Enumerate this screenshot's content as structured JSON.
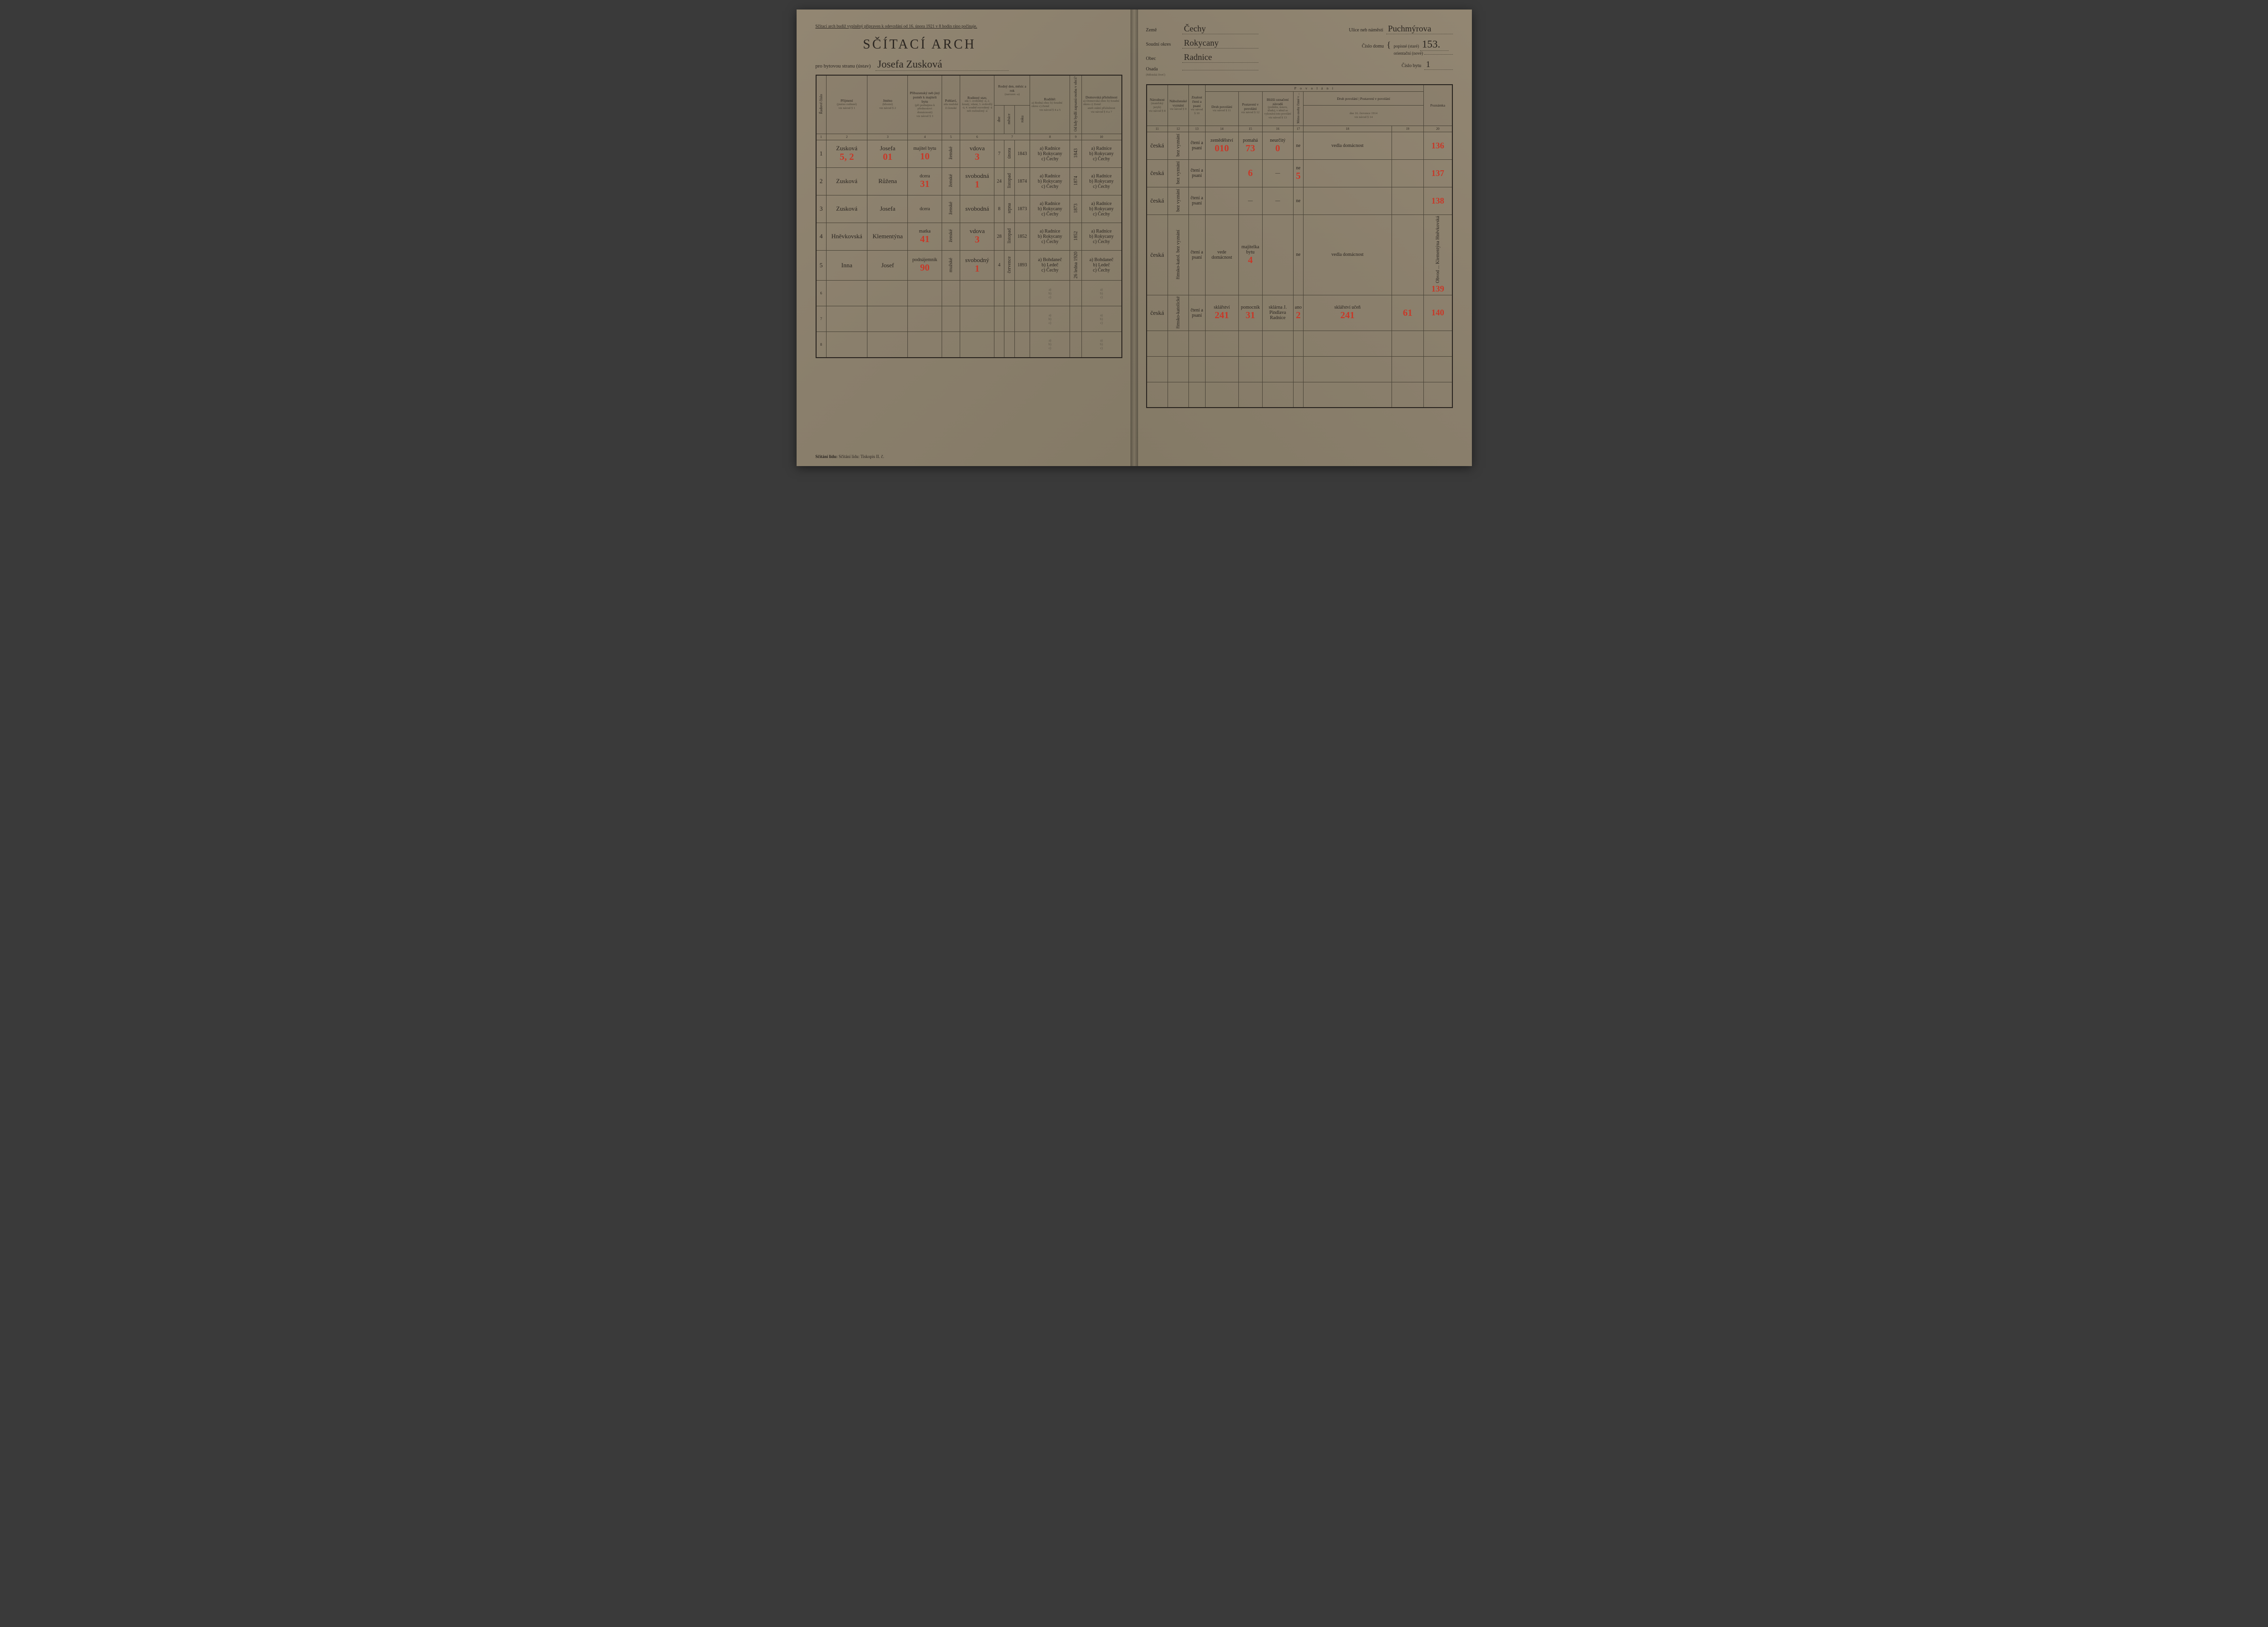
{
  "document": {
    "type": "census_form",
    "country": "Czechoslovakia",
    "year": 1921,
    "language": "Czech"
  },
  "left_page": {
    "top_instruction": "Sčítací arch budiž vyplněný připraven k odevzdání od 16. února 1921 v 8 hodin ráno počínaje.",
    "main_title": "SČÍTACÍ ARCH",
    "subtitle_prefix": "pro bytovou stranu (ústav)",
    "household_head": "Josefa Zusková",
    "columns": {
      "c1": "Řadové číslo",
      "c2": {
        "title": "Příjmení",
        "sub": "(jméno rodinné)",
        "note": "viz návod § 1"
      },
      "c3": {
        "title": "Jméno",
        "sub": "(křestní)",
        "note": "viz návod § 2"
      },
      "c4": {
        "title": "Příbuzenský neb jiný poměr k majiteli bytu",
        "sub": "(při podnájmu k přednostovi domácnosti)",
        "note": "viz návod § 3"
      },
      "c5": {
        "title": "Pohlaví,",
        "sub": "zda mužské či ženské"
      },
      "c6": {
        "title": "Rodinný stav,",
        "sub": "zda 1. svobodný -á, 2. ženatý, vdaná, 3. ovdovělý -á, 4. soudně rozvedený -á neb rozloučený -á"
      },
      "c7": {
        "title": "Rodný den, měsíc a rok",
        "sub": "(narozen -a)",
        "subcols": [
          "dne",
          "měsíce",
          "roku"
        ],
        "note": "viz návod § 4"
      },
      "c8": {
        "title": "Rodiště:",
        "sub": "a) Rodná obec b) Soudní okres c) Země",
        "note": "viz návod § 4 a 5"
      },
      "c9": {
        "title": "Od kdy bydlí zapsaná osoba v obci?",
        "note": "viz návod § 4 a 6"
      },
      "c10": {
        "title": "Domovská příslušnost",
        "sub": "a) Domovská obec b) Soudní okres c) Země",
        "sub2": "aneb státní příslušnost",
        "note": "viz návod § 4 a 7"
      }
    },
    "col_numbers": [
      "1",
      "2",
      "3",
      "4",
      "5",
      "6",
      "7",
      "8",
      "9",
      "10"
    ],
    "rows": [
      {
        "num": "1",
        "surname": "Zusková",
        "red_surname": "5, 2",
        "given": "Josefa",
        "red_given": "01",
        "relation": "majitel bytu",
        "red_relation": "10",
        "sex": "ženské",
        "status": "vdova",
        "red_status": "3",
        "birth_day": "7",
        "birth_month": "února",
        "birth_year": "1843",
        "birthplace": {
          "a": "Radnice",
          "b": "Rokycany",
          "c": "Čechy"
        },
        "since": "1843",
        "domicile": {
          "a": "Radnice",
          "b": "Rokycany",
          "c": "Čechy"
        }
      },
      {
        "num": "2",
        "surname": "Zusková",
        "given": "Růžena",
        "relation": "dcera",
        "red_relation": "31",
        "sex": "ženské",
        "status": "svobodná",
        "red_status": "1",
        "birth_day": "24",
        "birth_month": "listopad",
        "birth_year": "1874",
        "birthplace": {
          "a": "Radnice",
          "b": "Rokycany",
          "c": "Čechy"
        },
        "since": "1874",
        "domicile": {
          "a": "Radnice",
          "b": "Rokycany",
          "c": "Čechy"
        }
      },
      {
        "num": "3",
        "surname": "Zusková",
        "given": "Josefa",
        "relation": "dcera",
        "sex": "ženské",
        "status": "svobodná",
        "birth_day": "8",
        "birth_month": "srpna",
        "birth_year": "1873",
        "birthplace": {
          "a": "Radnice",
          "b": "Rokycany",
          "c": "Čechy"
        },
        "since": "1873",
        "domicile": {
          "a": "Radnice",
          "b": "Rokycany",
          "c": "Čechy"
        }
      },
      {
        "num": "4",
        "surname": "Hněvkovská",
        "given": "Klementýna",
        "relation": "matka",
        "red_relation": "41",
        "sex": "ženské",
        "status": "vdova",
        "red_status": "3",
        "birth_day": "28",
        "birth_month": "listopad",
        "birth_year": "1852",
        "birthplace": {
          "a": "Radnice",
          "b": "Rokycany",
          "c": "Čechy"
        },
        "since": "1852",
        "domicile": {
          "a": "Radnice",
          "b": "Rokycany",
          "c": "Čechy"
        }
      },
      {
        "num": "5",
        "surname": "Inna",
        "given": "Josef",
        "relation": "podnájemník",
        "red_relation": "90",
        "sex": "mužské",
        "status": "svobodný",
        "red_status": "1",
        "birth_day": "4",
        "birth_month": "července",
        "birth_year": "1893",
        "birthplace": {
          "a": "Bohdaneč",
          "b": "Ledeč",
          "c": "Čechy"
        },
        "since": "26 ledna 1920",
        "domicile": {
          "a": "Bohdaneč",
          "b": "Ledeč",
          "c": "Čechy"
        }
      }
    ],
    "footer": "Sčítání lidu: Tiskopis II. č."
  },
  "right_page": {
    "header_left": {
      "zeme_label": "Země",
      "zeme": "Čechy",
      "okres_label": "Soudní okres",
      "okres": "Rokycany",
      "obec_label": "Obec",
      "obec": "Radnice",
      "osada_label": "Osada",
      "osada_sub": "(Městská čtvrť)",
      "osada": ""
    },
    "header_right": {
      "ulice_label": "Ulice neb náměstí",
      "ulice": "Puchmýrova",
      "cislo_domu_label": "Číslo domu",
      "popisne_label": "popisné (staré)",
      "popisne": "153.",
      "orientacni_label": "orientační (nové)",
      "orientacni": "",
      "cislo_bytu_label": "Číslo bytu",
      "cislo_bytu": "1"
    },
    "columns": {
      "c11": {
        "title": "Národnost",
        "sub": "(mateřský jazyk)",
        "note": "viz návod § 8"
      },
      "c12": {
        "title": "Náboženské vyznání",
        "note": "viz návod § 9"
      },
      "c13": {
        "title": "Znalost čtení a psaní",
        "note": "viz návod § 10"
      },
      "povolani_title": "P o v o l á n í",
      "c14": {
        "title": "Druh povolání",
        "note": "viz návod § 11"
      },
      "c15": {
        "title": "Postavení v povolání",
        "note": "viz návod § 12"
      },
      "c16": {
        "title": "Bližší označení závodů",
        "sub": "(podniku, ústavu, úřadu), v němž se vykonává toto povolání",
        "note": "viz návod § 13"
      },
      "c17": {
        "title": "",
        "sub": "Mimo osoby činné v ..."
      },
      "c18_19": {
        "title_top": "Druh povolání | Postavení v povolání",
        "sub": "dne 16. července 1914",
        "note": "viz návod § 14"
      },
      "c20": "Poznámka"
    },
    "col_numbers": [
      "11",
      "12",
      "13",
      "14",
      "15",
      "16",
      "17",
      "18",
      "19",
      "20"
    ],
    "rows": [
      {
        "nationality": "česká",
        "religion": "bez vyznání",
        "literacy": "čtení a psaní",
        "occupation": "zemědělství",
        "red_occ": "010",
        "position": "pomahá",
        "red_pos": "73",
        "employer": "neurčitý",
        "red_emp": "0",
        "c17": "ne",
        "c18": "vedla domácnost",
        "c19": "",
        "margin": "136"
      },
      {
        "nationality": "česká",
        "religion": "bez vyznání",
        "literacy": "čtení a psaní",
        "occupation": "",
        "red_occ": "",
        "position": "",
        "red_pos": "6",
        "employer": "—",
        "c17": "ne",
        "red_c17": "5",
        "c18": "",
        "c19": "",
        "margin": "137"
      },
      {
        "nationality": "česká",
        "religion": "bez vyznání",
        "literacy": "čtení a psaní",
        "occupation": "",
        "position": "—",
        "employer": "—",
        "c17": "ne",
        "c18": "",
        "c19": "",
        "margin": "138"
      },
      {
        "nationality": "česká",
        "religion": "římsko-katol. bez vyznání",
        "literacy": "čtení a psaní",
        "occupation": "vede domácnost",
        "position": "majitelka bytu",
        "red_pos": "4",
        "employer": "",
        "c17": "ne",
        "c18": "vedla domácnost",
        "c19": "",
        "margin": "139",
        "note": "Obvod ... Klementýna Hněvkovská"
      },
      {
        "nationality": "česká",
        "religion": "římsko-katolické",
        "literacy": "čtení a psaní",
        "occupation": "sklářství",
        "red_occ": "241",
        "position": "pomocník",
        "red_pos": "31",
        "employer": "sklárna J. Pindlava Radnice",
        "c17": "ano",
        "red_c17": "2",
        "c18": "sklářství učeň",
        "red_c18": "241",
        "c19": "",
        "red_c19": "61",
        "margin": "140"
      }
    ]
  },
  "colors": {
    "paper": "#8a7f6c",
    "ink": "#2a2520",
    "red_ink": "#c83828",
    "border": "#4a4438"
  }
}
